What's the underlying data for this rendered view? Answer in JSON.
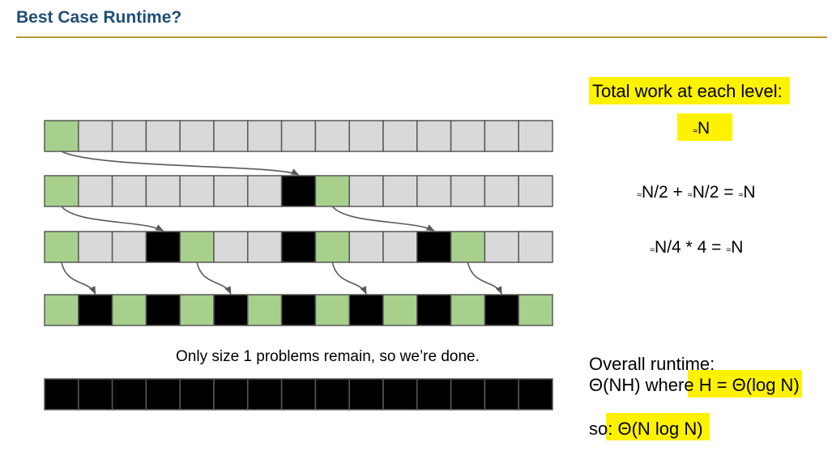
{
  "slide": {
    "title": "Best Case Runtime?"
  },
  "diagram": {
    "cells_per_row": 15,
    "rows": [
      {
        "cells": [
          "g",
          "w",
          "w",
          "w",
          "w",
          "w",
          "w",
          "w",
          "w",
          "w",
          "w",
          "w",
          "w",
          "w",
          "w"
        ]
      },
      {
        "cells": [
          "g",
          "w",
          "w",
          "w",
          "w",
          "w",
          "w",
          "b",
          "g",
          "w",
          "w",
          "w",
          "w",
          "w",
          "w"
        ]
      },
      {
        "cells": [
          "g",
          "w",
          "w",
          "b",
          "g",
          "w",
          "w",
          "b",
          "g",
          "w",
          "w",
          "b",
          "g",
          "w",
          "w"
        ]
      },
      {
        "cells": [
          "g",
          "b",
          "g",
          "b",
          "g",
          "b",
          "g",
          "b",
          "g",
          "b",
          "g",
          "b",
          "g",
          "b",
          "g"
        ]
      },
      {
        "cells": [
          "b",
          "b",
          "b",
          "b",
          "b",
          "b",
          "b",
          "b",
          "b",
          "b",
          "b",
          "b",
          "b",
          "b",
          "b"
        ]
      }
    ],
    "arrows": [
      {
        "from_row": 0,
        "from_cell": 0,
        "to_row": 1,
        "to_cell": 7
      },
      {
        "from_row": 1,
        "from_cell": 0,
        "to_row": 2,
        "to_cell": 3
      },
      {
        "from_row": 1,
        "from_cell": 8,
        "to_row": 2,
        "to_cell": 11
      },
      {
        "from_row": 2,
        "from_cell": 0,
        "to_row": 3,
        "to_cell": 1
      },
      {
        "from_row": 2,
        "from_cell": 4,
        "to_row": 3,
        "to_cell": 5
      },
      {
        "from_row": 2,
        "from_cell": 8,
        "to_row": 3,
        "to_cell": 9
      },
      {
        "from_row": 2,
        "from_cell": 12,
        "to_row": 3,
        "to_cell": 13
      }
    ],
    "done_note": "Only size 1 problems remain, so we’re done.",
    "colors": {
      "g": "#a8d08d",
      "w": "#d9d9d9",
      "b": "#000000",
      "border": "#595959",
      "arrow": "#595959"
    }
  },
  "work": {
    "heading": "Total work at each level:",
    "level1": {
      "approx": "≈",
      "value": "N"
    },
    "level2": {
      "a1": "≈",
      "t1": "N/2 + ",
      "a2": "≈",
      "t2": "N/2 = ",
      "a3": "≈",
      "t3": "N"
    },
    "level3": {
      "a1": "≈",
      "t1": "N/4 * 4 = ",
      "a2": "≈",
      "t2": "N"
    }
  },
  "overall": {
    "heading": "Overall runtime:",
    "line_prefix": "Θ(NH) where",
    "line_highlight": " H = Θ(log N)",
    "so_prefix": "so",
    "so_highlight": ": Θ(N log N)"
  },
  "highlight_color": "#fff200"
}
